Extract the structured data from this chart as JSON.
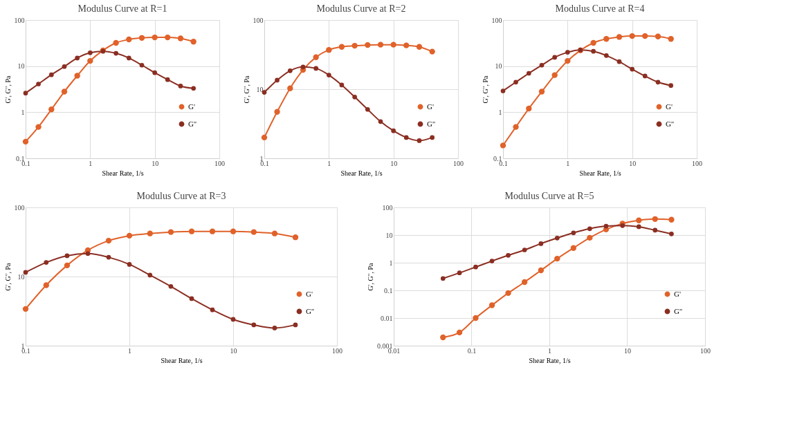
{
  "chart_data": [
    {
      "type": "line",
      "title": "Modulus Curve at R=1",
      "xlabel": "Shear Rate, 1/s",
      "ylabel": "G', G'', Pa",
      "log": "xy",
      "grid": true,
      "legend": "right",
      "marker": "circle",
      "line_style": "solid",
      "xlim": [
        0.1,
        100
      ],
      "xticks": [
        0.1,
        1,
        10,
        100
      ],
      "ylim": [
        0.1,
        100
      ],
      "yticks": [
        0.1,
        1,
        10,
        100
      ],
      "x": [
        0.1,
        0.158,
        0.251,
        0.398,
        0.631,
        1,
        1.58,
        2.51,
        3.98,
        6.31,
        10,
        15.8,
        25.1,
        39.8
      ],
      "series": [
        {
          "name": "G'",
          "color": "#e0622a",
          "values": [
            0.23,
            0.48,
            1.15,
            2.8,
            6.2,
            13,
            22,
            32,
            38,
            41,
            42,
            42,
            40,
            34
          ]
        },
        {
          "name": "G''",
          "color": "#8b2e22",
          "values": [
            2.6,
            4.1,
            6.5,
            9.8,
            15,
            19.5,
            21,
            19,
            15,
            10.5,
            7.2,
            5.1,
            3.7,
            3.3
          ]
        }
      ]
    },
    {
      "type": "line",
      "title": "Modulus Curve at R=2",
      "xlabel": "Shear Rate, 1/s",
      "ylabel": "G', G'', Pa",
      "log": "xy",
      "grid": true,
      "legend": "right",
      "marker": "circle",
      "line_style": "solid",
      "xlim": [
        0.1,
        100
      ],
      "xticks": [
        0.1,
        1,
        10,
        100
      ],
      "ylim": [
        1,
        100
      ],
      "yticks": [
        1,
        10,
        100
      ],
      "x": [
        0.1,
        0.158,
        0.251,
        0.398,
        0.631,
        1,
        1.58,
        2.51,
        3.98,
        6.31,
        10,
        15.8,
        25.1,
        39.8
      ],
      "series": [
        {
          "name": "G'",
          "color": "#e0622a",
          "values": [
            2.0,
            4.7,
            10.3,
            19,
            29,
            37,
            41,
            42.5,
            43.5,
            44,
            44,
            43,
            41,
            35
          ]
        },
        {
          "name": "G''",
          "color": "#8b2e22",
          "values": [
            9,
            13.5,
            18.5,
            21,
            20,
            16,
            11.5,
            7.7,
            5.1,
            3.4,
            2.5,
            2.0,
            1.8,
            2.0
          ]
        }
      ]
    },
    {
      "type": "line",
      "title": "Modulus Curve at R=4",
      "xlabel": "Shear Rate, 1/s",
      "ylabel": "G', G'', Pa",
      "log": "xy",
      "grid": true,
      "legend": "right",
      "marker": "circle",
      "line_style": "solid",
      "xlim": [
        0.1,
        100
      ],
      "xticks": [
        0.1,
        1,
        10,
        100
      ],
      "ylim": [
        0.1,
        100
      ],
      "yticks": [
        0.1,
        1,
        10,
        100
      ],
      "x": [
        0.1,
        0.158,
        0.251,
        0.398,
        0.631,
        1,
        1.58,
        2.51,
        3.98,
        6.31,
        10,
        15.8,
        25.1,
        39.8
      ],
      "series": [
        {
          "name": "G'",
          "color": "#e0622a",
          "values": [
            0.19,
            0.48,
            1.2,
            2.8,
            6.4,
            13,
            22,
            32,
            39,
            43,
            45,
            45,
            44,
            39
          ]
        },
        {
          "name": "G''",
          "color": "#8b2e22",
          "values": [
            2.9,
            4.5,
            7,
            10.5,
            15.5,
            20,
            22.5,
            21,
            17,
            12.5,
            8.6,
            6.1,
            4.5,
            3.8
          ]
        }
      ]
    },
    {
      "type": "line",
      "title": "Modulus Curve at R=3",
      "xlabel": "Shear Rate, 1/s",
      "ylabel": "G', G'', Pa",
      "log": "xy",
      "grid": true,
      "legend": "right",
      "marker": "circle",
      "line_style": "solid",
      "xlim": [
        0.1,
        100
      ],
      "xticks": [
        0.1,
        1,
        10,
        100
      ],
      "ylim": [
        1,
        100
      ],
      "yticks": [
        1,
        10,
        100
      ],
      "x": [
        0.1,
        0.158,
        0.251,
        0.398,
        0.631,
        1,
        1.58,
        2.51,
        3.98,
        6.31,
        10,
        15.8,
        25.1,
        39.8
      ],
      "series": [
        {
          "name": "G'",
          "color": "#e0622a",
          "values": [
            3.4,
            7.5,
            14.5,
            24,
            33,
            39,
            42,
            44,
            45,
            45,
            45,
            44,
            42,
            37
          ]
        },
        {
          "name": "G''",
          "color": "#8b2e22",
          "values": [
            11.5,
            16,
            20,
            21.5,
            19,
            15,
            10.5,
            7.2,
            4.8,
            3.3,
            2.4,
            2.0,
            1.8,
            2.0
          ]
        }
      ]
    },
    {
      "type": "line",
      "title": "Modulus Curve at R=5",
      "xlabel": "Shear Rate, 1/s",
      "ylabel": "G', G'', Pa",
      "log": "xy",
      "grid": true,
      "legend": "right",
      "marker": "circle",
      "line_style": "solid",
      "xlim": [
        0.01,
        100
      ],
      "xticks": [
        0.01,
        0.1,
        1,
        10,
        100
      ],
      "ylim": [
        0.001,
        100
      ],
      "yticks": [
        0.001,
        0.01,
        0.1,
        1,
        10,
        100
      ],
      "x": [
        0.043,
        0.07,
        0.113,
        0.183,
        0.296,
        0.48,
        0.78,
        1.26,
        2.04,
        3.3,
        5.35,
        8.7,
        14.1,
        22.8,
        37
      ],
      "series": [
        {
          "name": "G'",
          "color": "#e0622a",
          "values": [
            0.002,
            0.003,
            0.01,
            0.029,
            0.08,
            0.2,
            0.53,
            1.4,
            3.4,
            8,
            16,
            26,
            34,
            38,
            36
          ]
        },
        {
          "name": "G''",
          "color": "#8b2e22",
          "values": [
            0.27,
            0.43,
            0.7,
            1.15,
            1.85,
            2.9,
            4.9,
            7.8,
            12,
            17,
            21,
            22,
            20,
            15,
            11
          ]
        }
      ]
    }
  ]
}
